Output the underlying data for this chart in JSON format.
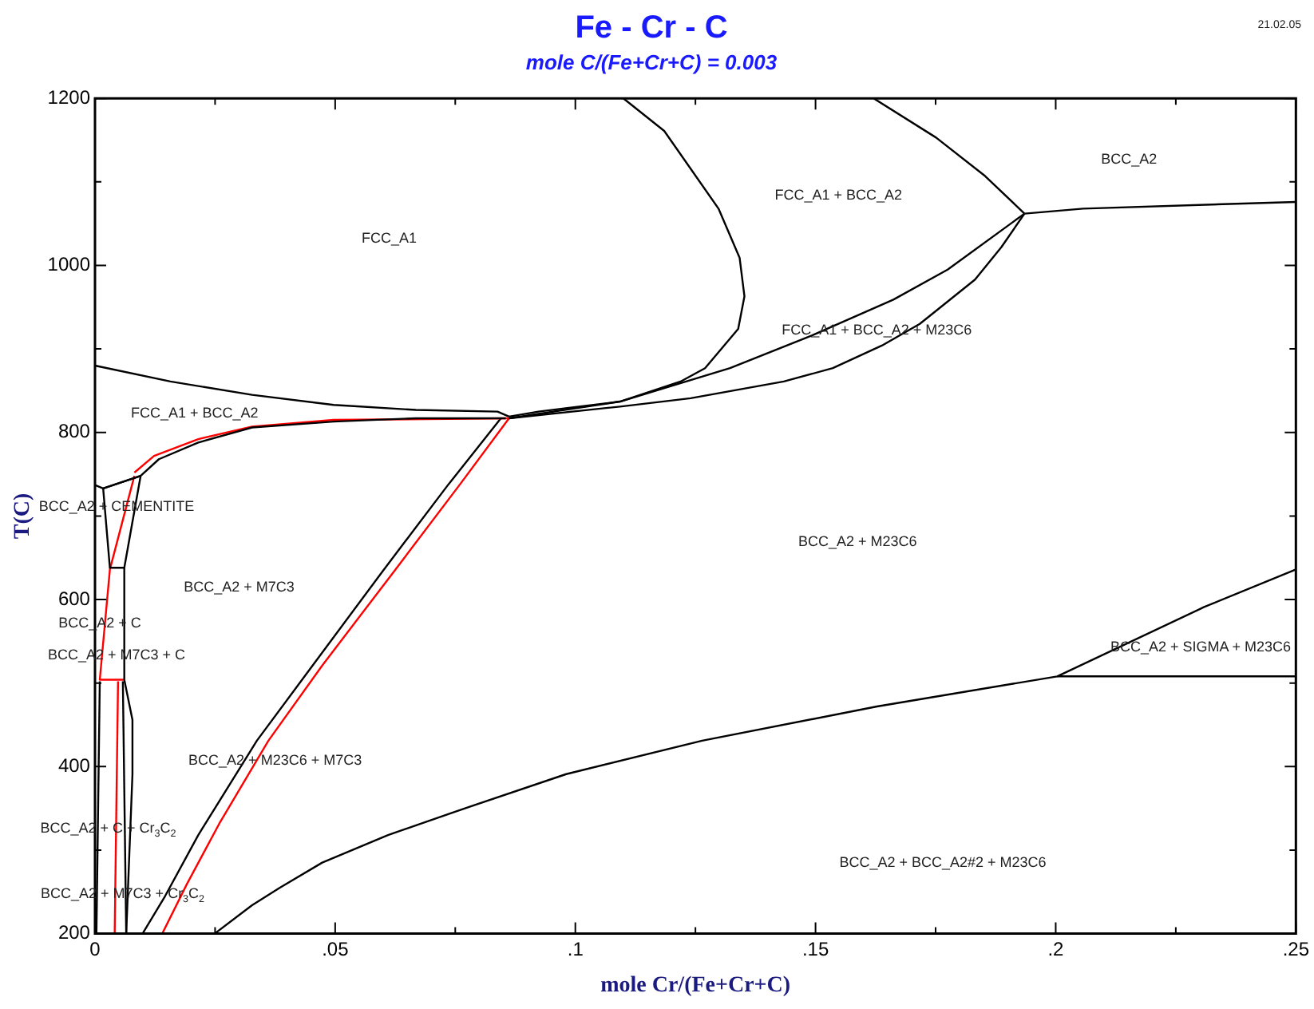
{
  "chart_data": {
    "type": "line",
    "title": "Fe - Cr - C",
    "subtitle": "mole C/(Fe+Cr+C) = 0.003",
    "xlabel": "mole Cr/(Fe+Cr+C)",
    "ylabel": "T(C)",
    "xlim": [
      0,
      0.25
    ],
    "ylim": [
      200,
      1200
    ],
    "xticks": [
      0,
      {
        "value": 0.025,
        "label": null
      },
      {
        "value": 0.05,
        "label": ".05"
      },
      {
        "value": 0.075,
        "label": null
      },
      {
        "value": 0.1,
        "label": ".1"
      },
      {
        "value": 0.125,
        "label": null
      },
      {
        "value": 0.15,
        "label": ".15"
      },
      {
        "value": 0.175,
        "label": null
      },
      {
        "value": 0.2,
        "label": ".2"
      },
      {
        "value": 0.225,
        "label": null
      },
      {
        "value": 0.25,
        "label": ".25"
      }
    ],
    "yticks": [
      200,
      {
        "value": 300,
        "label": null
      },
      400,
      {
        "value": 500,
        "label": null
      },
      600,
      {
        "value": 700,
        "label": null
      },
      800,
      {
        "value": 900,
        "label": null
      },
      1000,
      {
        "value": 1100,
        "label": null
      },
      1200
    ],
    "grid": false,
    "legend": false,
    "marker": "none",
    "series": [
      {
        "color": "#000000",
        "x": [
          0,
          0.0157,
          0.0327,
          0.0497,
          0.0668,
          0.0838,
          0.0862
        ],
        "values": [
          880,
          861,
          845,
          833,
          827,
          825,
          819
        ]
      },
      {
        "color": "#000000",
        "x": [
          0.11,
          0.1185,
          0.1298,
          0.1342,
          0.1352,
          0.1339,
          0.127,
          0.1219,
          0.1093,
          0.0923,
          0.0862
        ],
        "values": [
          1200,
          1161,
          1068,
          1009,
          963,
          924,
          877,
          861,
          837,
          825,
          819
        ]
      },
      {
        "color": "#000000",
        "x": [
          0.0862,
          0.1093,
          0.1322,
          0.1492,
          0.1662,
          0.1775,
          0.1935
        ],
        "values": [
          817,
          837,
          877,
          916,
          959,
          995,
          1062
        ]
      },
      {
        "color": "#000000",
        "x": [
          0.0862,
          0.1093,
          0.124,
          0.1434,
          0.1536,
          0.1638,
          0.1717,
          0.1832,
          0.1887,
          0.1935
        ],
        "values": [
          817,
          831,
          841,
          861,
          877,
          904,
          930,
          983,
          1022,
          1062
        ]
      },
      {
        "color": "#000000",
        "x": [
          0.1621,
          0.1751,
          0.1853,
          0.1935
        ],
        "values": [
          1200,
          1153,
          1107,
          1062
        ]
      },
      {
        "color": "#000000",
        "x": [
          0.1935,
          0.2057,
          0.25
        ],
        "values": [
          1062,
          1068,
          1076
        ]
      },
      {
        "color": "#000000",
        "x": [
          0.0017,
          0.0095,
          0.0133,
          0.0215,
          0.0327,
          0.0497,
          0.0668,
          0.0855
        ],
        "values": [
          733,
          748,
          768,
          788,
          806,
          813,
          817,
          817
        ]
      },
      {
        "color": "#ff0000",
        "x": [
          0.0082,
          0.0123,
          0.0215,
          0.0327,
          0.0497,
          0.0862
        ],
        "values": [
          752,
          772,
          792,
          807,
          815,
          817
        ]
      },
      {
        "color": "#ff0000",
        "x": [
          0.0862,
          0.076,
          0.0623,
          0.0473,
          0.0361,
          0.0259,
          0.0191,
          0.014
        ],
        "values": [
          817,
          738,
          634,
          521,
          431,
          332,
          259,
          200
        ]
      },
      {
        "color": "#000000",
        "x": [
          0.0845,
          0.0736,
          0.0599,
          0.0453,
          0.0337,
          0.0215,
          0.0146,
          0.0099
        ],
        "values": [
          817,
          738,
          634,
          521,
          431,
          318,
          245,
          200
        ]
      },
      {
        "color": "#000000",
        "x": [
          0,
          0.0017,
          0.0095
        ],
        "values": [
          737,
          733,
          748
        ]
      },
      {
        "color": "#000000",
        "x": [
          0.0017,
          0.0031,
          0.0061,
          0.0095
        ],
        "values": [
          733,
          638,
          638,
          748
        ]
      },
      {
        "color": "#000000",
        "x": [
          0.0061,
          0.0061,
          0.0078,
          0.0078,
          0.0065
        ],
        "values": [
          638,
          504,
          456,
          391,
          200
        ]
      },
      {
        "color": "#ff0000",
        "x": [
          0.0082,
          0.0031,
          0.001,
          0.0061
        ],
        "values": [
          748,
          636,
          504,
          504
        ]
      },
      {
        "color": "#ff0000",
        "x": [
          0.0048,
          0.0041
        ],
        "values": [
          502,
          200
        ]
      },
      {
        "color": "#000000",
        "x": [
          0.001,
          0.0003
        ],
        "values": [
          502,
          200
        ]
      },
      {
        "color": "#000000",
        "x": [
          0.0058,
          0.0065
        ],
        "values": [
          502,
          200
        ]
      },
      {
        "color": "#000000",
        "x": [
          0.0249,
          0.0327,
          0.0385,
          0.0473,
          0.061,
          0.078,
          0.0981,
          0.1264,
          0.1628,
          0.2003,
          0.2309,
          0.25
        ],
        "values": [
          200,
          234,
          255,
          285,
          318,
          352,
          391,
          431,
          472,
          508,
          591,
          636
        ]
      },
      {
        "color": "#000000",
        "x": [
          0.2003,
          0.25
        ],
        "values": [
          508,
          508
        ]
      }
    ],
    "annotations": [
      "FCC_A1",
      "FCC_A1 + BCC_A2",
      "BCC_A2",
      "FCC_A1 + BCC_A2 + M23C6",
      "FCC_A1 + BCC_A2",
      "BCC_A2 + CEMENTITE",
      "BCC_A2 + M7C3",
      "BCC_A2 + C",
      "BCC_A2 + M7C3 + C",
      "BCC_A2 + M23C6 + M7C3",
      "BCC_A2 + C + Cr$_{3}$C$_{2}$",
      "BCC_A2 + M7C3 + Cr$_{3}$C$_{2}$",
      "BCC_A2 + M23C6",
      "BCC_A2 + SIGMA + M23C6",
      "BCC_A2 + BCC_A2#2 + M23C6",
      "21.02.05"
    ]
  }
}
